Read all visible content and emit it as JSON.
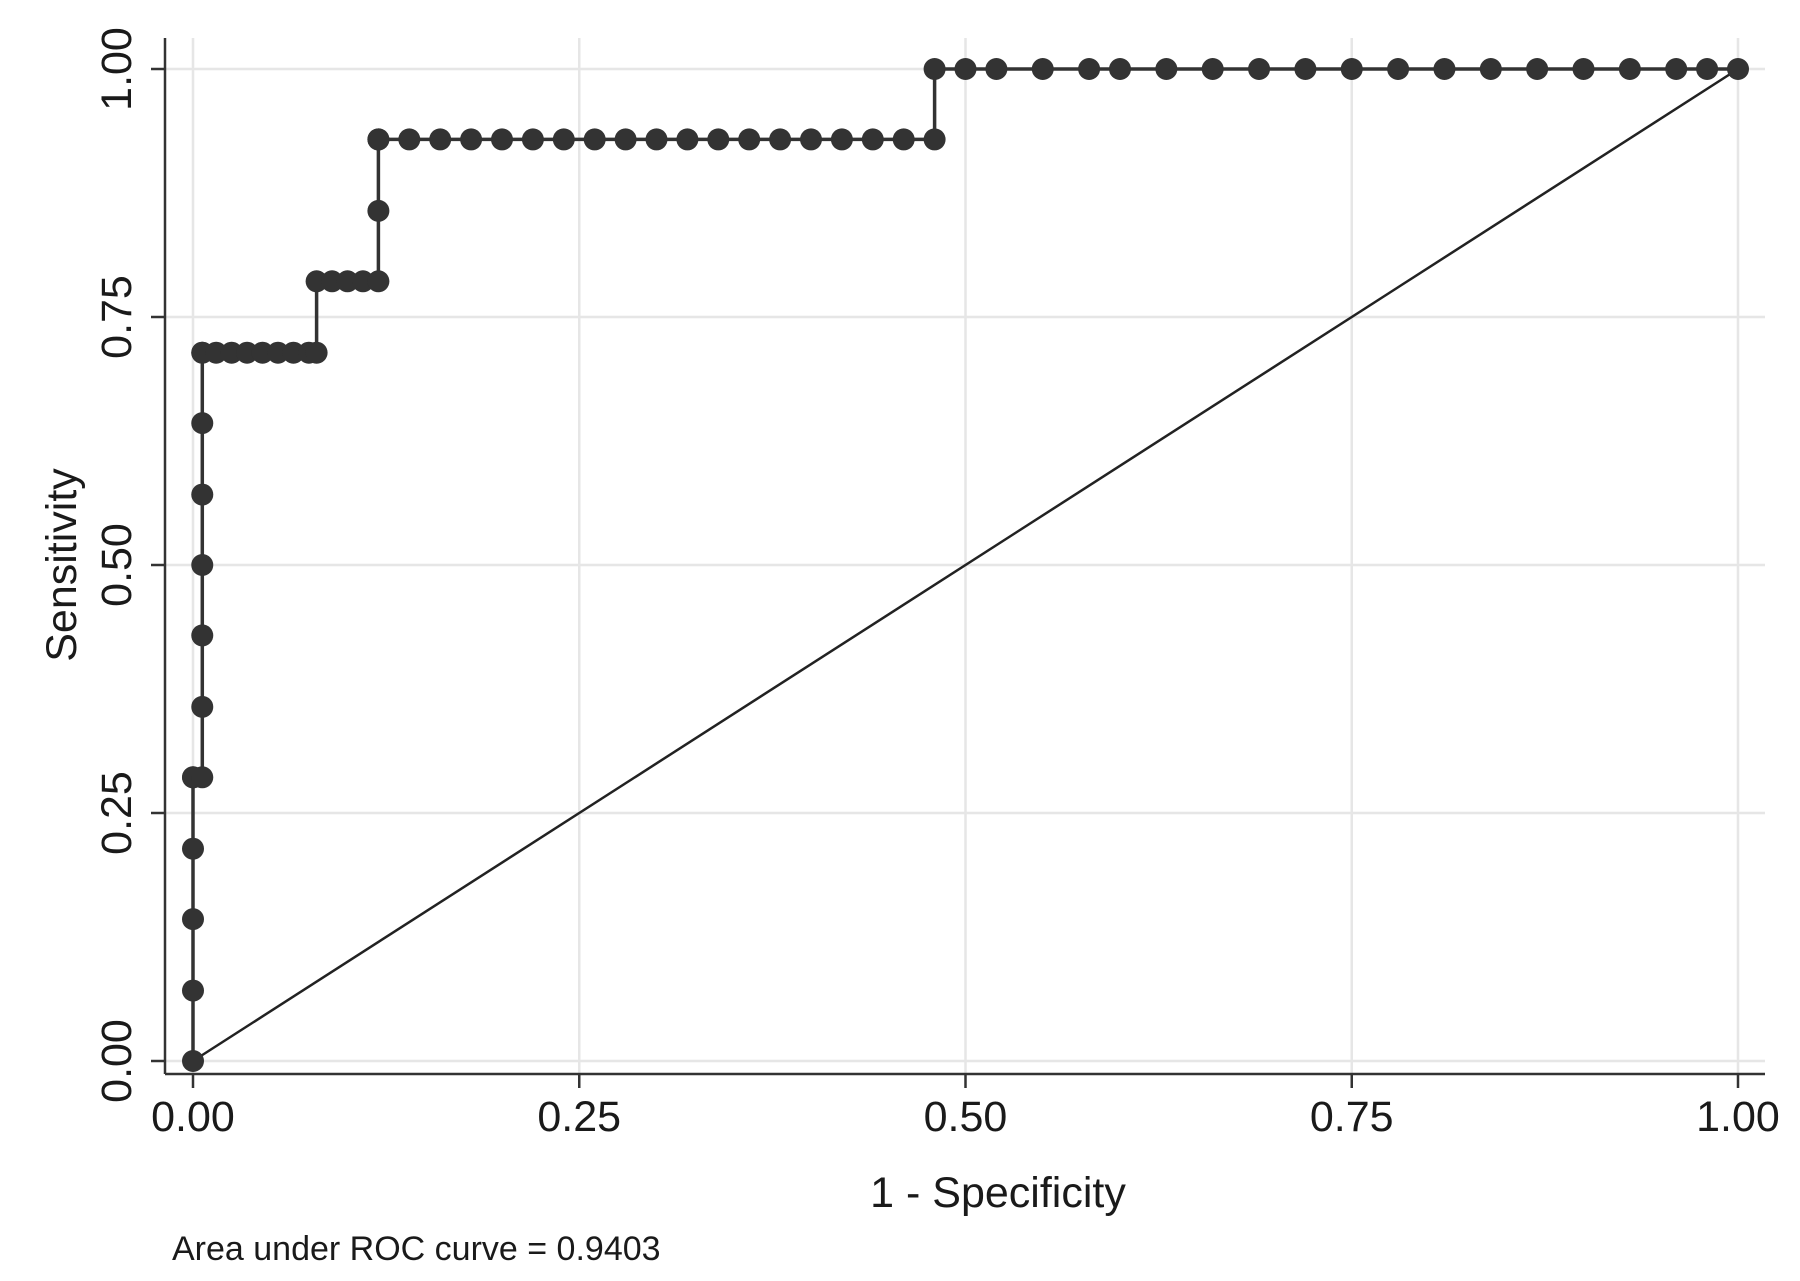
{
  "chart_data": {
    "type": "line",
    "xlabel": "1 - Specificity",
    "ylabel": "Sensitivity",
    "xlim": [
      0,
      1
    ],
    "ylim": [
      0,
      1
    ],
    "x_ticks": [
      "0.00",
      "0.25",
      "0.50",
      "0.75",
      "1.00"
    ],
    "y_ticks": [
      "0.00",
      "0.25",
      "0.50",
      "0.75",
      "1.00"
    ],
    "grid": true,
    "legend": "none",
    "note": "Area under ROC curve = 0.9403",
    "colors": {
      "curve": "#333333",
      "reference": "#222222",
      "grid": "#e6e6e6",
      "axis": "#333333"
    },
    "series": [
      {
        "marker": "circle",
        "x": [
          0,
          0,
          0,
          0,
          0,
          0,
          0.006,
          0.006,
          0.006,
          0.006,
          0.006,
          0.006,
          0.006,
          0.006,
          0.015,
          0.025,
          0.035,
          0.045,
          0.055,
          0.065,
          0.075,
          0.08,
          0.08,
          0.09,
          0.1,
          0.11,
          0.12,
          0.12,
          0.12,
          0.12,
          0.14,
          0.16,
          0.18,
          0.2,
          0.22,
          0.24,
          0.26,
          0.28,
          0.3,
          0.32,
          0.34,
          0.36,
          0.38,
          0.4,
          0.42,
          0.44,
          0.46,
          0.48,
          0.48,
          0.5,
          0.52,
          0.55,
          0.58,
          0.6,
          0.63,
          0.66,
          0.69,
          0.72,
          0.75,
          0.78,
          0.81,
          0.84,
          0.87,
          0.9,
          0.93,
          0.96,
          0.98,
          1.0
        ],
        "y": [
          0,
          0.071,
          0.143,
          0.214,
          0.286,
          0.286,
          0.286,
          0.357,
          0.429,
          0.5,
          0.571,
          0.643,
          0.714,
          0.714,
          0.714,
          0.714,
          0.714,
          0.714,
          0.714,
          0.714,
          0.714,
          0.714,
          0.786,
          0.786,
          0.786,
          0.786,
          0.786,
          0.857,
          0.929,
          0.929,
          0.929,
          0.929,
          0.929,
          0.929,
          0.929,
          0.929,
          0.929,
          0.929,
          0.929,
          0.929,
          0.929,
          0.929,
          0.929,
          0.929,
          0.929,
          0.929,
          0.929,
          0.929,
          1.0,
          1.0,
          1.0,
          1.0,
          1.0,
          1.0,
          1.0,
          1.0,
          1.0,
          1.0,
          1.0,
          1.0,
          1.0,
          1.0,
          1.0,
          1.0,
          1.0,
          1.0,
          1.0,
          1.0
        ]
      },
      {
        "x": [
          0,
          1
        ],
        "y": [
          0,
          1
        ]
      }
    ]
  }
}
